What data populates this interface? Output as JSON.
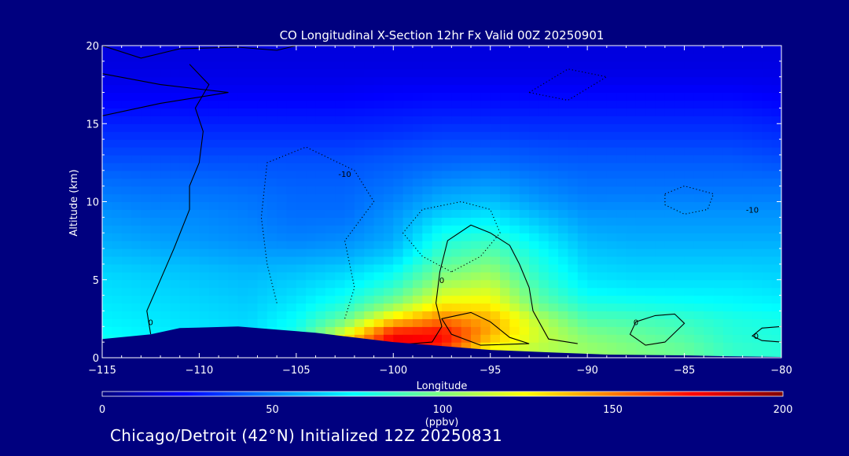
{
  "chart_data": {
    "type": "heatmap",
    "title": "CO Longitudinal X-Section 12hr  Fx Valid 00Z 20250901",
    "xlabel": "Longitude",
    "ylabel": "Altitude (km)",
    "xlim": [
      -115,
      -80
    ],
    "ylim": [
      0,
      20
    ],
    "x_ticks": [
      -115,
      -110,
      -105,
      -100,
      -95,
      -90,
      -85,
      -80
    ],
    "x_tick_labels": [
      "−115",
      "−110",
      "−105",
      "−100",
      "−95",
      "−90",
      "−85",
      "−80"
    ],
    "y_ticks": [
      0,
      5,
      10,
      15,
      20
    ],
    "y_tick_labels": [
      "0",
      "5",
      "10",
      "15",
      "20"
    ],
    "x": [
      -115,
      -112.5,
      -110,
      -107.5,
      -105,
      -102.5,
      -100,
      -97.5,
      -95,
      -92.5,
      -90,
      -87.5,
      -85,
      -82.5,
      -80
    ],
    "z_levels_km": [
      0.5,
      1.5,
      2.5,
      3.5,
      4.5,
      5.5,
      6.5,
      7.5,
      8.5,
      9.5,
      10.5,
      11.5,
      12.5,
      13.5,
      14.5,
      15.5,
      16.5,
      17.5,
      18.5,
      19.5
    ],
    "values_ppbv": [
      [
        80,
        78,
        75,
        72,
        85,
        150,
        180,
        165,
        120,
        110,
        105,
        100,
        95,
        85,
        82
      ],
      [
        75,
        72,
        70,
        68,
        80,
        120,
        175,
        175,
        140,
        115,
        100,
        95,
        90,
        82,
        80
      ],
      [
        72,
        70,
        68,
        66,
        75,
        95,
        130,
        150,
        140,
        110,
        90,
        88,
        85,
        80,
        78
      ],
      [
        70,
        68,
        66,
        64,
        70,
        80,
        100,
        125,
        125,
        95,
        80,
        78,
        76,
        74,
        72
      ],
      [
        68,
        66,
        64,
        62,
        66,
        72,
        85,
        110,
        115,
        88,
        72,
        70,
        70,
        70,
        68
      ],
      [
        66,
        64,
        62,
        60,
        62,
        66,
        75,
        98,
        105,
        82,
        68,
        66,
        66,
        66,
        65
      ],
      [
        62,
        60,
        58,
        56,
        56,
        58,
        65,
        88,
        95,
        78,
        64,
        62,
        62,
        62,
        62
      ],
      [
        58,
        56,
        54,
        52,
        50,
        52,
        58,
        80,
        85,
        72,
        60,
        58,
        58,
        58,
        58
      ],
      [
        55,
        53,
        52,
        50,
        47,
        48,
        55,
        72,
        75,
        65,
        56,
        55,
        55,
        55,
        55
      ],
      [
        52,
        50,
        50,
        48,
        45,
        45,
        52,
        62,
        66,
        58,
        52,
        52,
        52,
        52,
        52
      ],
      [
        48,
        47,
        47,
        46,
        44,
        44,
        48,
        56,
        58,
        52,
        48,
        48,
        48,
        48,
        48
      ],
      [
        45,
        44,
        44,
        43,
        42,
        42,
        45,
        50,
        52,
        48,
        45,
        45,
        45,
        45,
        45
      ],
      [
        40,
        40,
        40,
        40,
        40,
        40,
        42,
        44,
        45,
        43,
        42,
        42,
        42,
        42,
        40
      ],
      [
        36,
        36,
        36,
        36,
        36,
        36,
        38,
        40,
        40,
        39,
        38,
        38,
        38,
        38,
        36
      ],
      [
        32,
        32,
        32,
        32,
        32,
        32,
        33,
        35,
        35,
        34,
        34,
        34,
        34,
        34,
        32
      ],
      [
        28,
        28,
        28,
        28,
        28,
        28,
        29,
        30,
        30,
        30,
        30,
        30,
        30,
        30,
        28
      ],
      [
        24,
        24,
        24,
        24,
        24,
        24,
        25,
        26,
        26,
        26,
        26,
        26,
        26,
        26,
        24
      ],
      [
        21,
        21,
        21,
        21,
        21,
        21,
        22,
        22,
        22,
        22,
        22,
        22,
        22,
        22,
        21
      ],
      [
        19,
        19,
        19,
        19,
        19,
        19,
        19,
        19,
        19,
        19,
        19,
        19,
        19,
        19,
        19
      ],
      [
        18,
        18,
        18,
        18,
        18,
        18,
        18,
        18,
        18,
        18,
        18,
        18,
        18,
        18,
        18
      ]
    ],
    "terrain_km": [
      [
        -115,
        1.2
      ],
      [
        -112.5,
        1.5
      ],
      [
        -111,
        1.9
      ],
      [
        -108,
        2.0
      ],
      [
        -106,
        1.8
      ],
      [
        -104,
        1.6
      ],
      [
        -102,
        1.3
      ],
      [
        -100,
        1.0
      ],
      [
        -97,
        0.7
      ],
      [
        -95,
        0.5
      ],
      [
        -92,
        0.35
      ],
      [
        -89,
        0.2
      ],
      [
        -85,
        0.15
      ],
      [
        -83,
        0.1
      ],
      [
        -80,
        0.05
      ]
    ],
    "contours": [
      {
        "label": "0",
        "style": "solid",
        "label_at": [
          -112.5,
          2.3
        ],
        "points": [
          [
            -112.5,
            1.5
          ],
          [
            -112.7,
            3.0
          ],
          [
            -112.0,
            5.0
          ],
          [
            -111.3,
            7.0
          ],
          [
            -110.5,
            9.5
          ],
          [
            -110.5,
            11.0
          ],
          [
            -110.0,
            12.5
          ],
          [
            -109.8,
            14.5
          ],
          [
            -110.2,
            16.0
          ],
          [
            -109.5,
            17.5
          ],
          [
            -110.5,
            18.8
          ]
        ]
      },
      {
        "label": "",
        "style": "solid",
        "label_at": null,
        "points": [
          [
            -115,
            20.0
          ],
          [
            -113.0,
            19.2
          ],
          [
            -111.0,
            19.8
          ],
          [
            -108.0,
            19.9
          ],
          [
            -106.0,
            19.7
          ],
          [
            -105.0,
            20.0
          ]
        ]
      },
      {
        "label": "",
        "style": "solid",
        "label_at": null,
        "points": [
          [
            -115,
            18.2
          ],
          [
            -112.0,
            17.5
          ],
          [
            -108.5,
            17.0
          ],
          [
            -112.0,
            16.3
          ],
          [
            -115,
            15.5
          ]
        ]
      },
      {
        "label": "0",
        "style": "solid",
        "label_at": [
          -97.5,
          5.0
        ],
        "points": [
          [
            -100.5,
            1.0
          ],
          [
            -100.0,
            0.8
          ],
          [
            -98.0,
            1.0
          ],
          [
            -97.5,
            2.0
          ],
          [
            -97.8,
            3.5
          ],
          [
            -97.6,
            5.5
          ],
          [
            -97.2,
            7.5
          ],
          [
            -96.0,
            8.5
          ],
          [
            -95.0,
            8.0
          ],
          [
            -94.0,
            7.2
          ],
          [
            -93.5,
            6.0
          ],
          [
            -93.0,
            4.5
          ],
          [
            -92.8,
            3.0
          ],
          [
            -92.0,
            1.2
          ],
          [
            -90.5,
            0.9
          ]
        ]
      },
      {
        "label": "",
        "style": "solid",
        "label_at": null,
        "points": [
          [
            -97.0,
            1.5
          ],
          [
            -97.5,
            2.5
          ],
          [
            -96.0,
            2.9
          ],
          [
            -95.0,
            2.3
          ],
          [
            -94.0,
            1.3
          ],
          [
            -93.0,
            0.9
          ],
          [
            -95.5,
            0.8
          ],
          [
            -97.0,
            1.5
          ]
        ]
      },
      {
        "label": "0",
        "style": "solid",
        "label_at": [
          -87.5,
          2.3
        ],
        "points": [
          [
            -87.5,
            2.3
          ],
          [
            -86.5,
            2.7
          ],
          [
            -85.5,
            2.8
          ],
          [
            -85.0,
            2.2
          ],
          [
            -86.0,
            1.0
          ],
          [
            -87.0,
            0.8
          ],
          [
            -87.8,
            1.5
          ],
          [
            -87.5,
            2.3
          ]
        ]
      },
      {
        "label": "0",
        "style": "solid",
        "label_at": [
          -81.3,
          1.4
        ],
        "points": [
          [
            -80.0,
            2.0
          ],
          [
            -81.0,
            1.9
          ],
          [
            -81.5,
            1.4
          ],
          [
            -81.0,
            1.1
          ],
          [
            -80.0,
            1.0
          ]
        ]
      },
      {
        "label": "-10",
        "style": "dotted",
        "label_at": [
          -102.5,
          11.8
        ],
        "points": [
          [
            -106.0,
            3.5
          ],
          [
            -106.5,
            6.0
          ],
          [
            -106.8,
            9.0
          ],
          [
            -106.5,
            12.5
          ],
          [
            -104.5,
            13.5
          ],
          [
            -102.0,
            12.0
          ],
          [
            -101.0,
            10.0
          ],
          [
            -102.5,
            7.5
          ],
          [
            -102.0,
            4.5
          ],
          [
            -102.5,
            2.5
          ]
        ]
      },
      {
        "label": "",
        "style": "dotted",
        "label_at": null,
        "points": [
          [
            -97.0,
            5.5
          ],
          [
            -98.5,
            6.5
          ],
          [
            -99.5,
            8.0
          ],
          [
            -98.5,
            9.5
          ],
          [
            -96.5,
            10.0
          ],
          [
            -95.0,
            9.5
          ],
          [
            -94.5,
            8.0
          ],
          [
            -95.5,
            6.5
          ],
          [
            -97.0,
            5.5
          ]
        ]
      },
      {
        "label": "-10",
        "style": "dotted",
        "label_at": [
          -81.5,
          9.5
        ],
        "points": [
          [
            -86.0,
            10.5
          ],
          [
            -85.0,
            11.0
          ],
          [
            -83.5,
            10.5
          ],
          [
            -83.8,
            9.5
          ],
          [
            -85.0,
            9.2
          ],
          [
            -86.0,
            9.8
          ],
          [
            -86.0,
            10.5
          ]
        ]
      },
      {
        "label": "",
        "style": "dotted",
        "label_at": null,
        "points": [
          [
            -93.0,
            17.0
          ],
          [
            -91.0,
            18.5
          ],
          [
            -89.0,
            18.0
          ],
          [
            -91.0,
            16.5
          ],
          [
            -93.0,
            17.0
          ]
        ]
      }
    ],
    "colorbar": {
      "min": 0,
      "max": 200,
      "ticks": [
        0,
        50,
        100,
        150,
        200
      ],
      "unit": "(ppbv)"
    },
    "grid": false,
    "legend": "colorbar-bottom"
  },
  "caption": "Chicago/Detroit (42°N) Initialized 12Z 20250831"
}
